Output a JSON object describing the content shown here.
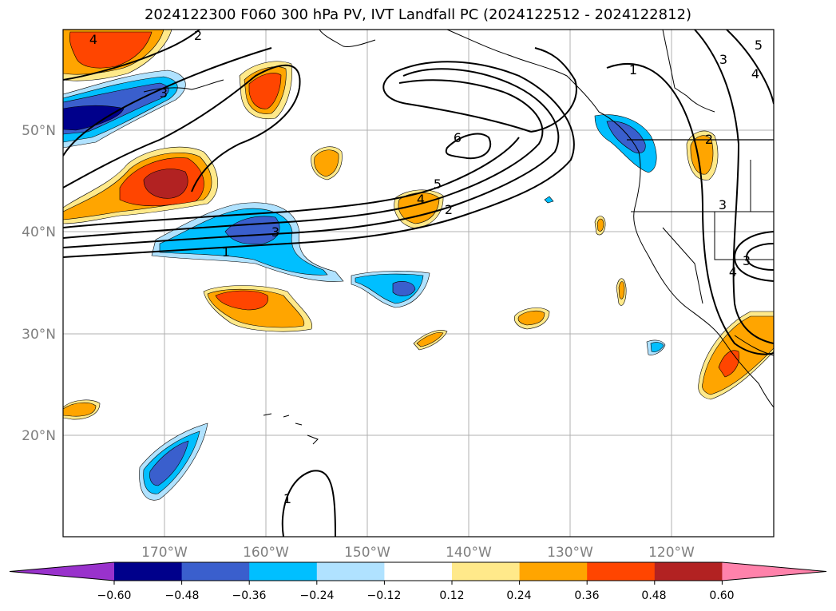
{
  "title": "2024122300 F060 300 hPa PV, IVT Landfall PC (2024122512 - 2024122812)",
  "lat_labels": [
    "50°N",
    "40°N",
    "30°N",
    "20°N"
  ],
  "lon_labels": [
    "170°W",
    "160°W",
    "150°W",
    "140°W",
    "130°W",
    "120°W"
  ],
  "colorbar": {
    "ticks": [
      "−0.60",
      "−0.48",
      "−0.36",
      "−0.24",
      "−0.12",
      "0.12",
      "0.24",
      "0.36",
      "0.48",
      "0.60"
    ],
    "colors": [
      "#9932cc",
      "#00008b",
      "#3a5fcd",
      "#00bfff",
      "#b0e2ff",
      "#ffffff",
      "#ffe98a",
      "#ffa500",
      "#ff4500",
      "#b22222",
      "#ff82ab"
    ]
  },
  "contour_labels": [
    "6",
    "5",
    "4",
    "3",
    "2",
    "1",
    "4",
    "3",
    "2",
    "1",
    "3",
    "4",
    "3",
    "5",
    "3",
    "2",
    "1",
    "4"
  ]
}
